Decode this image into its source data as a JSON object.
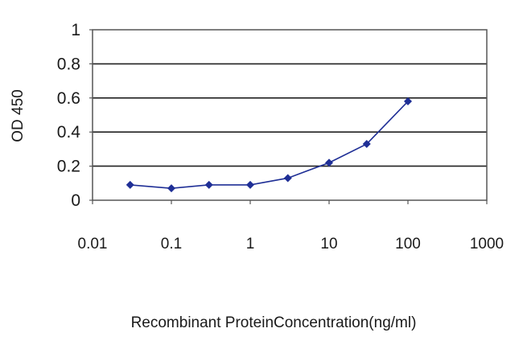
{
  "chart_data": {
    "type": "line",
    "title": "",
    "xlabel": "Recombinant ProteinConcentration(ng/ml)",
    "ylabel": "OD 450",
    "x_scale": "log",
    "xlim": [
      0.01,
      1000
    ],
    "ylim": [
      0,
      1
    ],
    "x_ticks": [
      0.01,
      0.1,
      1,
      10,
      100,
      1000
    ],
    "x_tick_labels": [
      "0.01",
      "0.1",
      "1",
      "10",
      "100",
      "1000"
    ],
    "y_ticks": [
      0,
      0.2,
      0.4,
      0.6,
      0.8,
      1
    ],
    "y_tick_labels": [
      "0",
      "0.2",
      "0.4",
      "0.6",
      "0.8",
      "1"
    ],
    "grid": "horizontal",
    "legend": "none",
    "series": [
      {
        "color": "#1f2f96",
        "marker": "diamond",
        "x": [
          0.03,
          0.1,
          0.3,
          1,
          3,
          10,
          30,
          100
        ],
        "y": [
          0.09,
          0.07,
          0.09,
          0.09,
          0.13,
          0.22,
          0.33,
          0.58
        ]
      }
    ]
  }
}
